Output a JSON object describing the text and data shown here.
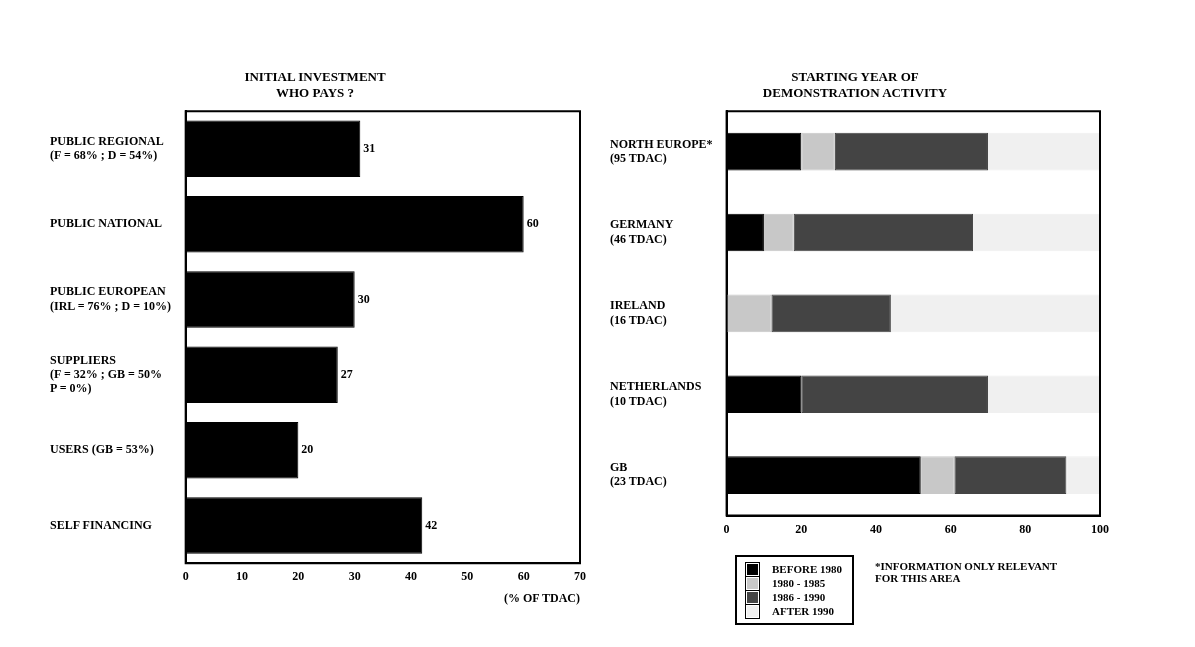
{
  "chart_data": [
    {
      "type": "bar",
      "orientation": "horizontal",
      "title": "INITIAL INVESTMENT\nWHO PAYS ?",
      "xlabel": "(% OF TDAC)",
      "categories": [
        "PUBLIC REGIONAL\n(F = 68% ; D = 54%)",
        "PUBLIC NATIONAL",
        "PUBLIC EUROPEAN\n(IRL = 76% ; D = 10%)",
        "SUPPLIERS\n(F = 32% ; GB = 50%\nP = 0%)",
        "USERS (GB = 53%)",
        "SELF FINANCING"
      ],
      "values": [
        31,
        60,
        30,
        27,
        20,
        42
      ],
      "color": "#000000",
      "data_labels": true,
      "xlim": [
        0,
        70
      ],
      "xticks": [
        0,
        10,
        20,
        30,
        40,
        50,
        60,
        70
      ],
      "grid": false,
      "legend": false
    },
    {
      "type": "bar",
      "orientation": "horizontal",
      "stacked": true,
      "title": "STARTING YEAR OF\nDEMONSTRATION ACTIVITY",
      "categories": [
        "NORTH EUROPE*\n(95 TDAC)",
        "GERMANY\n(46 TDAC)",
        "IRELAND\n(16 TDAC)",
        "NETHERLANDS\n(10 TDAC)",
        "GB\n(23 TDAC)"
      ],
      "series": [
        {
          "name": "BEFORE 1980",
          "color": "#000000",
          "values": [
            20,
            10,
            0,
            20,
            52
          ]
        },
        {
          "name": "1980 - 1985",
          "color": "#c8c8c8",
          "values": [
            9,
            8,
            12,
            0,
            9
          ]
        },
        {
          "name": "1986 - 1990",
          "color": "#444444",
          "values": [
            41,
            48,
            32,
            50,
            30
          ]
        },
        {
          "name": "AFTER 1990",
          "color": "#f0f0f0",
          "values": [
            30,
            34,
            56,
            30,
            9
          ]
        }
      ],
      "xlim": [
        0,
        100
      ],
      "xticks": [
        0,
        20,
        40,
        60,
        80,
        100
      ],
      "grid": false,
      "legend": "bottom",
      "annotations": [
        "*INFORMATION ONLY RELEVANT\nFOR THIS AREA"
      ]
    }
  ]
}
